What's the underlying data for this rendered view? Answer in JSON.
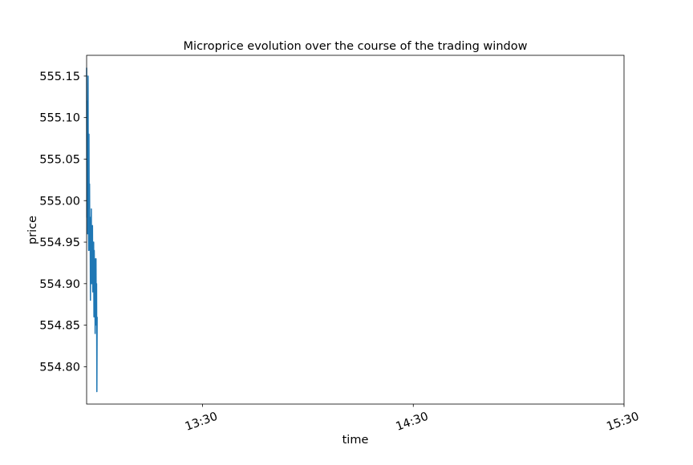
{
  "chart_data": {
    "type": "line",
    "title": "Microprice evolution over the course of the trading window",
    "xlabel": "time",
    "ylabel": "price",
    "xlim": [
      "12:57",
      "15:30"
    ],
    "ylim": [
      554.755,
      555.175
    ],
    "xticks": [
      "13:30",
      "14:30",
      "15:30"
    ],
    "yticks": [
      554.8,
      554.85,
      554.9,
      554.95,
      555.0,
      555.05,
      555.1,
      555.15
    ],
    "ytick_labels": [
      "554.80",
      "554.85",
      "554.90",
      "554.95",
      "555.00",
      "555.05",
      "555.10",
      "555.15"
    ],
    "grid": false,
    "series": [
      {
        "color": "#1f77b4",
        "x": [
          "12:57:00",
          "12:57:05",
          "12:57:10",
          "12:57:15",
          "12:57:20",
          "12:57:25",
          "12:57:30",
          "12:57:35",
          "12:57:40",
          "12:57:45",
          "12:57:50",
          "12:57:55",
          "12:58:00",
          "12:58:05",
          "12:58:10",
          "12:58:15",
          "12:58:20",
          "12:58:25",
          "12:58:30",
          "12:58:35",
          "12:58:40",
          "12:58:45",
          "12:58:50",
          "12:58:55",
          "12:59:00",
          "12:59:05",
          "12:59:10",
          "12:59:15",
          "12:59:20",
          "12:59:25",
          "12:59:30",
          "12:59:35",
          "12:59:40",
          "12:59:45",
          "12:59:50",
          "12:59:55",
          "13:00:00"
        ],
        "values": [
          555.16,
          554.98,
          555.12,
          554.96,
          555.06,
          555.15,
          554.99,
          554.94,
          555.08,
          554.96,
          555.02,
          554.94,
          554.98,
          554.88,
          554.96,
          554.93,
          554.99,
          554.9,
          554.95,
          554.93,
          554.97,
          554.89,
          554.94,
          554.92,
          554.95,
          554.86,
          554.94,
          554.91,
          554.93,
          554.84,
          554.92,
          554.88,
          554.93,
          554.85,
          554.9,
          554.77,
          554.86
        ]
      }
    ]
  }
}
